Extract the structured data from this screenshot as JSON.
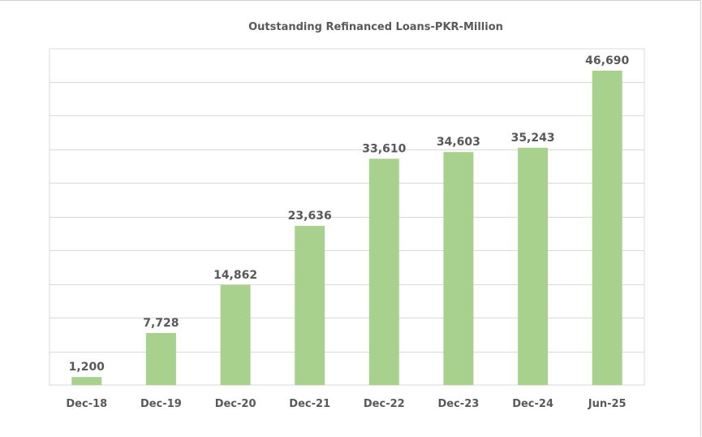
{
  "chart_data": {
    "type": "bar",
    "title": "Outstanding Refinanced Loans-PKR-Million",
    "xlabel": "",
    "ylabel": "",
    "categories": [
      "Dec-18",
      "Dec-19",
      "Dec-20",
      "Dec-21",
      "Dec-22",
      "Dec-23",
      "Dec-24",
      "Jun-25"
    ],
    "values": [
      1200,
      7728,
      14862,
      23636,
      33610,
      34603,
      35243,
      46690
    ],
    "value_labels": [
      "1,200",
      "7,728",
      "14,862",
      "23,636",
      "33,610",
      "34,603",
      "35,243",
      "46,690"
    ],
    "ylim": [
      0,
      45000
    ],
    "y_gridline_step": 5000,
    "grid": true,
    "legend": "none",
    "bar_color": "#a9d18e",
    "gridline_color": "#d9d9d9",
    "text_color": "#595959"
  }
}
